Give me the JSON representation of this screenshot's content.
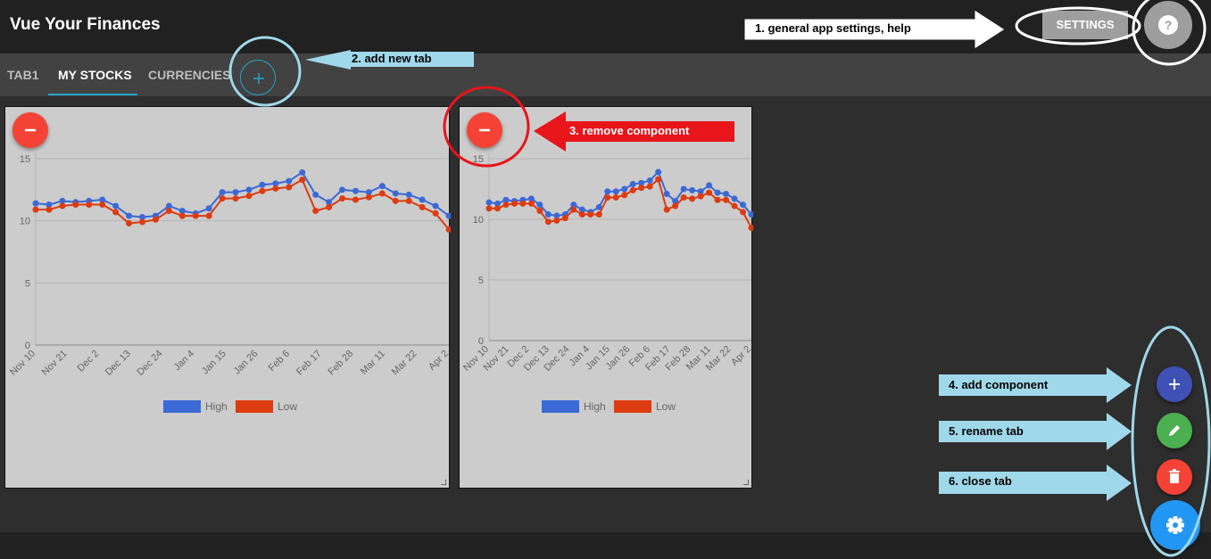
{
  "app": {
    "title": "Vue Your Finances"
  },
  "header": {
    "settings_label": "SETTINGS",
    "help_icon": "help-circle-icon"
  },
  "tabs": [
    {
      "label": "TAB1",
      "active": false
    },
    {
      "label": "MY STOCKS",
      "active": true
    },
    {
      "label": "CURRENCIES",
      "active": false
    }
  ],
  "add_tab": {
    "icon": "plus-icon"
  },
  "colors": {
    "accent": "#26a5c9",
    "high": "#3b69d6",
    "low": "#dd3b11",
    "remove": "#f44336",
    "fab_add": "#3f51b5",
    "fab_rename": "#4caf50",
    "fab_close": "#f44336",
    "fab_settings": "#2196f3",
    "callout_blue": "#9fd8ea",
    "callout_red": "#e8151b"
  },
  "charts": [
    {
      "remove_icon": "minus-icon",
      "chart_data": {
        "type": "line",
        "x_tick_labels": [
          "Nov 10",
          "Nov 21",
          "Dec 2",
          "Dec 13",
          "Dec 24",
          "Jan 4",
          "Jan 15",
          "Jan 26",
          "Feb 6",
          "Feb 17",
          "Feb 28",
          "Mar 11",
          "Mar 22",
          "Apr 2"
        ],
        "y_ticks": [
          0,
          5,
          10,
          15
        ],
        "ylim": [
          0,
          15
        ],
        "legend": [
          "High",
          "Low"
        ],
        "legend_position": "bottom",
        "grid": true,
        "series": [
          {
            "name": "High",
            "values": [
              11.4,
              11.3,
              11.6,
              11.5,
              11.6,
              11.7,
              11.2,
              10.4,
              10.3,
              10.4,
              11.2,
              10.8,
              10.6,
              11.0,
              12.3,
              12.3,
              12.5,
              12.9,
              13.0,
              13.2,
              13.9,
              12.1,
              11.5,
              12.5,
              12.4,
              12.3,
              12.8,
              12.2,
              12.1,
              11.7,
              11.2,
              10.4
            ]
          },
          {
            "name": "Low",
            "values": [
              10.9,
              10.9,
              11.2,
              11.3,
              11.3,
              11.3,
              10.7,
              9.8,
              9.9,
              10.1,
              10.8,
              10.4,
              10.4,
              10.4,
              11.8,
              11.8,
              12.0,
              12.4,
              12.6,
              12.7,
              13.3,
              10.8,
              11.1,
              11.8,
              11.7,
              11.9,
              12.2,
              11.6,
              11.6,
              11.1,
              10.6,
              9.3
            ]
          }
        ]
      }
    },
    {
      "remove_icon": "minus-icon",
      "chart_data": {
        "type": "line",
        "x_tick_labels": [
          "Nov 10",
          "Nov 21",
          "Dec 2",
          "Dec 13",
          "Dec 24",
          "Jan 4",
          "Jan 15",
          "Jan 26",
          "Feb 6",
          "Feb 17",
          "Feb 28",
          "Mar 11",
          "Mar 22",
          "Apr 2"
        ],
        "y_ticks": [
          0,
          5,
          10,
          15
        ],
        "ylim": [
          0,
          15
        ],
        "legend": [
          "High",
          "Low"
        ],
        "legend_position": "bottom",
        "grid": true,
        "series": [
          {
            "name": "High",
            "values": [
              11.4,
              11.3,
              11.6,
              11.5,
              11.6,
              11.7,
              11.2,
              10.4,
              10.3,
              10.4,
              11.2,
              10.8,
              10.6,
              11.0,
              12.3,
              12.3,
              12.5,
              12.9,
              13.0,
              13.2,
              13.9,
              12.1,
              11.5,
              12.5,
              12.4,
              12.3,
              12.8,
              12.2,
              12.1,
              11.7,
              11.2,
              10.4
            ]
          },
          {
            "name": "Low",
            "values": [
              10.9,
              10.9,
              11.2,
              11.3,
              11.3,
              11.3,
              10.7,
              9.8,
              9.9,
              10.1,
              10.8,
              10.4,
              10.4,
              10.4,
              11.8,
              11.8,
              12.0,
              12.4,
              12.6,
              12.7,
              13.3,
              10.8,
              11.1,
              11.8,
              11.7,
              11.9,
              12.2,
              11.6,
              11.6,
              11.1,
              10.6,
              9.3
            ]
          }
        ]
      }
    }
  ],
  "fabs": [
    {
      "icon": "plus-icon"
    },
    {
      "icon": "pencil-icon"
    },
    {
      "icon": "trash-icon"
    },
    {
      "icon": "gear-icon"
    }
  ],
  "annotations": {
    "a1": "1. general app settings, help",
    "a2": "2. add new tab",
    "a3": "3. remove component",
    "a4": "4. add component",
    "a5": "5. rename tab",
    "a6": "6. close tab"
  }
}
